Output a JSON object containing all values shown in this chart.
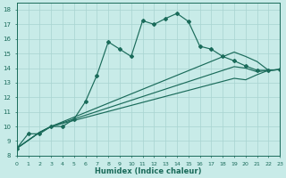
{
  "xlabel": "Humidex (Indice chaleur)",
  "bg_color": "#c8ebe8",
  "grid_color": "#a8d4d0",
  "line_color": "#1a6b5a",
  "xlim": [
    0,
    23
  ],
  "ylim": [
    8,
    18.5
  ],
  "xticks": [
    0,
    1,
    2,
    3,
    4,
    5,
    6,
    7,
    8,
    9,
    10,
    11,
    12,
    13,
    14,
    15,
    16,
    17,
    18,
    19,
    20,
    21,
    22,
    23
  ],
  "yticks": [
    8,
    9,
    10,
    11,
    12,
    13,
    14,
    15,
    16,
    17,
    18
  ],
  "line1_x": [
    0,
    1,
    2,
    3,
    4,
    5,
    6,
    7,
    8,
    9,
    10,
    11,
    12,
    13,
    14,
    15,
    16,
    17,
    18,
    19,
    20,
    21,
    22,
    23
  ],
  "line1_y": [
    8.5,
    9.5,
    9.5,
    10.0,
    10.0,
    10.5,
    11.7,
    13.5,
    15.8,
    15.3,
    14.8,
    17.25,
    17.0,
    17.4,
    17.75,
    17.2,
    15.5,
    15.3,
    14.8,
    14.5,
    14.15,
    13.85,
    13.85,
    13.9
  ],
  "line2_x": [
    0,
    2,
    3,
    19,
    20,
    21,
    22,
    23
  ],
  "line2_y": [
    8.5,
    9.6,
    10.0,
    15.1,
    14.8,
    14.45,
    13.85,
    13.9
  ],
  "line3_x": [
    0,
    2,
    3,
    19,
    20,
    21,
    22,
    23
  ],
  "line3_y": [
    8.5,
    9.6,
    10.0,
    14.1,
    14.0,
    13.75,
    13.85,
    13.9
  ],
  "line4_x": [
    0,
    2,
    3,
    19,
    20,
    21,
    22,
    23
  ],
  "line4_y": [
    8.5,
    9.6,
    10.0,
    13.3,
    13.2,
    13.55,
    13.85,
    13.9
  ]
}
